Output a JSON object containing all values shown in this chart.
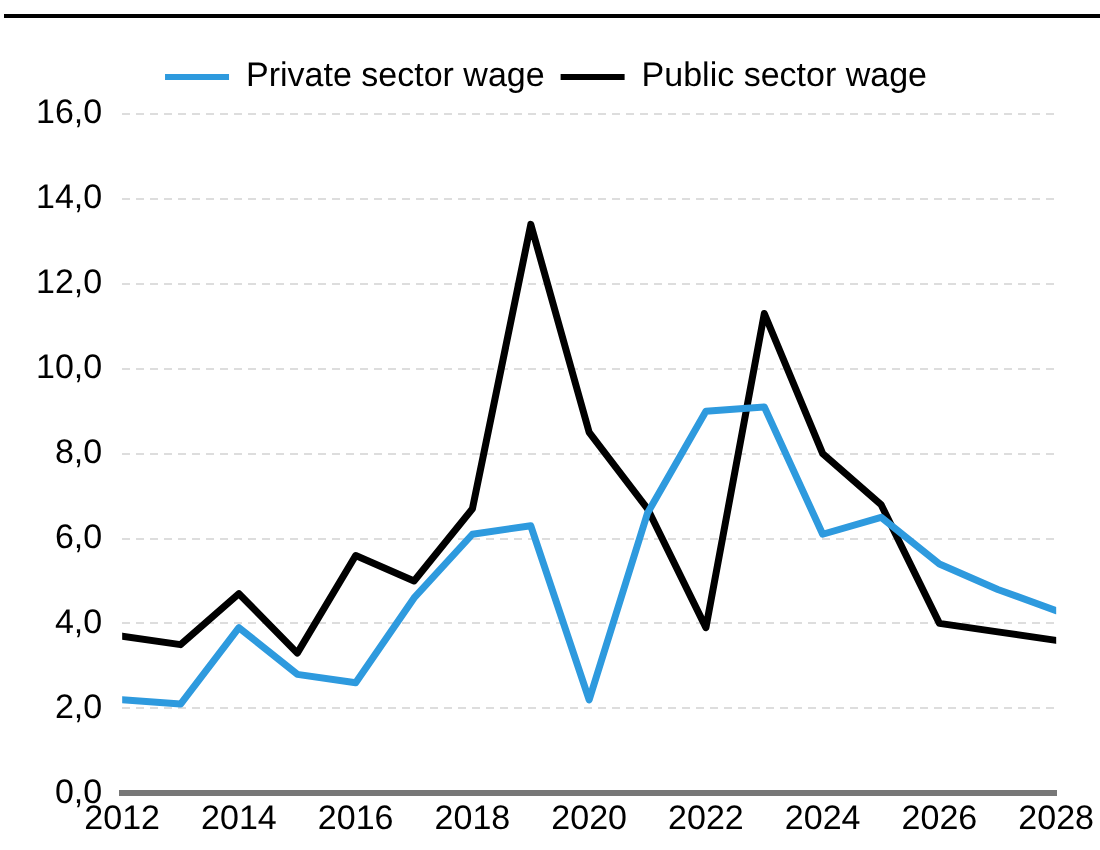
{
  "chart_data": {
    "type": "line",
    "x": [
      2012,
      2013,
      2014,
      2015,
      2016,
      2017,
      2018,
      2019,
      2020,
      2021,
      2022,
      2023,
      2024,
      2025,
      2026,
      2027,
      2028
    ],
    "series": [
      {
        "name": "Private sector wage",
        "color": "#2e9ade",
        "values": [
          2.2,
          2.1,
          3.9,
          2.8,
          2.6,
          4.6,
          6.1,
          6.3,
          2.2,
          6.6,
          9.0,
          9.1,
          6.1,
          6.5,
          5.4,
          4.8,
          4.3
        ]
      },
      {
        "name": "Public sector wage",
        "color": "#000000",
        "values": [
          3.7,
          3.5,
          4.7,
          3.3,
          5.6,
          5.0,
          6.7,
          13.4,
          8.5,
          6.7,
          3.9,
          11.3,
          8.0,
          6.8,
          4.0,
          3.8,
          3.6
        ]
      }
    ],
    "xlim": [
      2012,
      2028
    ],
    "xticks": [
      2012,
      2014,
      2016,
      2018,
      2020,
      2022,
      2024,
      2026,
      2028
    ],
    "ylim": [
      0,
      16
    ],
    "yticks": [
      {
        "value": 0,
        "label": "0,0"
      },
      {
        "value": 2,
        "label": "2,0"
      },
      {
        "value": 4,
        "label": "4,0"
      },
      {
        "value": 6,
        "label": "6,0"
      },
      {
        "value": 8,
        "label": "8,0"
      },
      {
        "value": 10,
        "label": "10,0"
      },
      {
        "value": 12,
        "label": "12,0"
      },
      {
        "value": 14,
        "label": "14,0"
      },
      {
        "value": 16,
        "label": "16,0"
      }
    ],
    "grid": "y",
    "legend": "top",
    "marker": "none",
    "line_style": "solid"
  }
}
